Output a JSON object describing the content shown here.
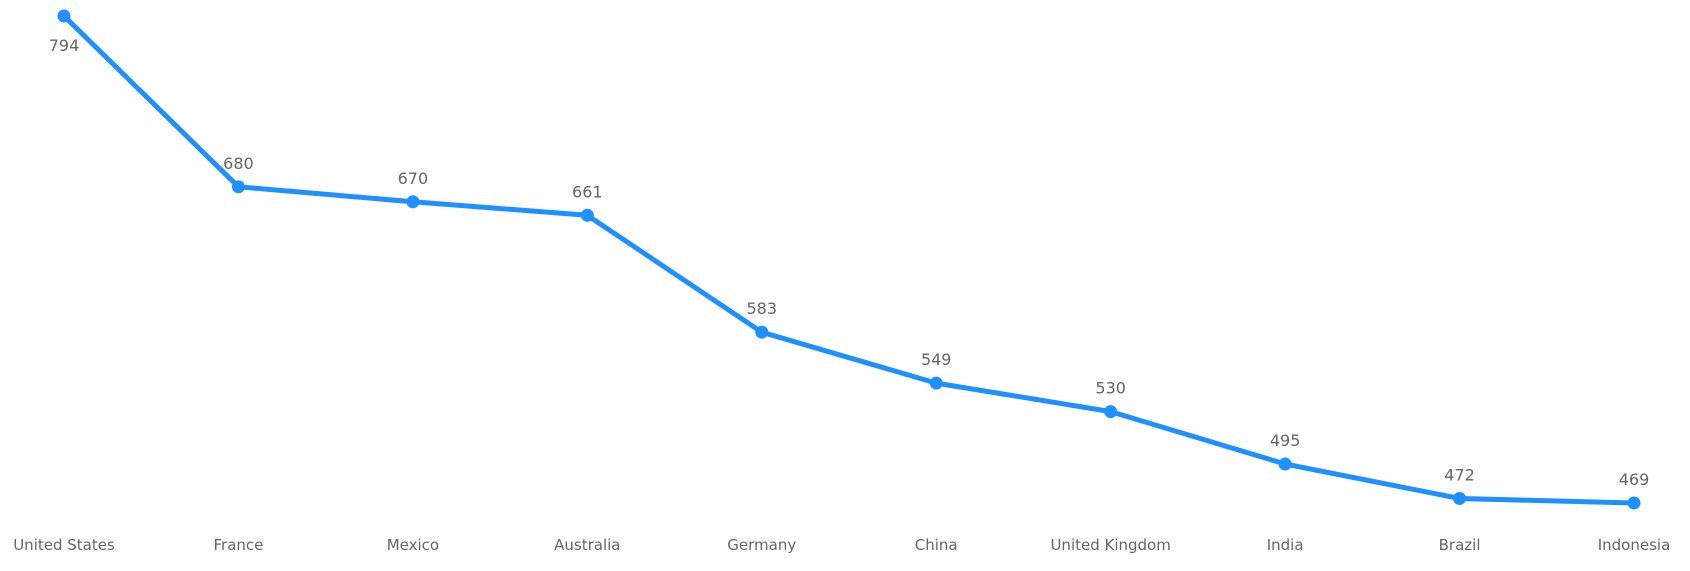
{
  "chart_data": {
    "type": "line",
    "categories": [
      "United States",
      "France",
      "Mexico",
      "Australia",
      "Germany",
      "China",
      "United Kingdom",
      "India",
      "Brazil",
      "Indonesia"
    ],
    "series": [
      {
        "values": [
          794,
          680,
          670,
          661,
          583,
          549,
          530,
          495,
          472,
          469
        ]
      }
    ],
    "title": "",
    "xlabel": "",
    "ylabel": "",
    "ylim": [
      469,
      794
    ],
    "grid": false,
    "legend": "none",
    "color": "#1e90ff"
  }
}
